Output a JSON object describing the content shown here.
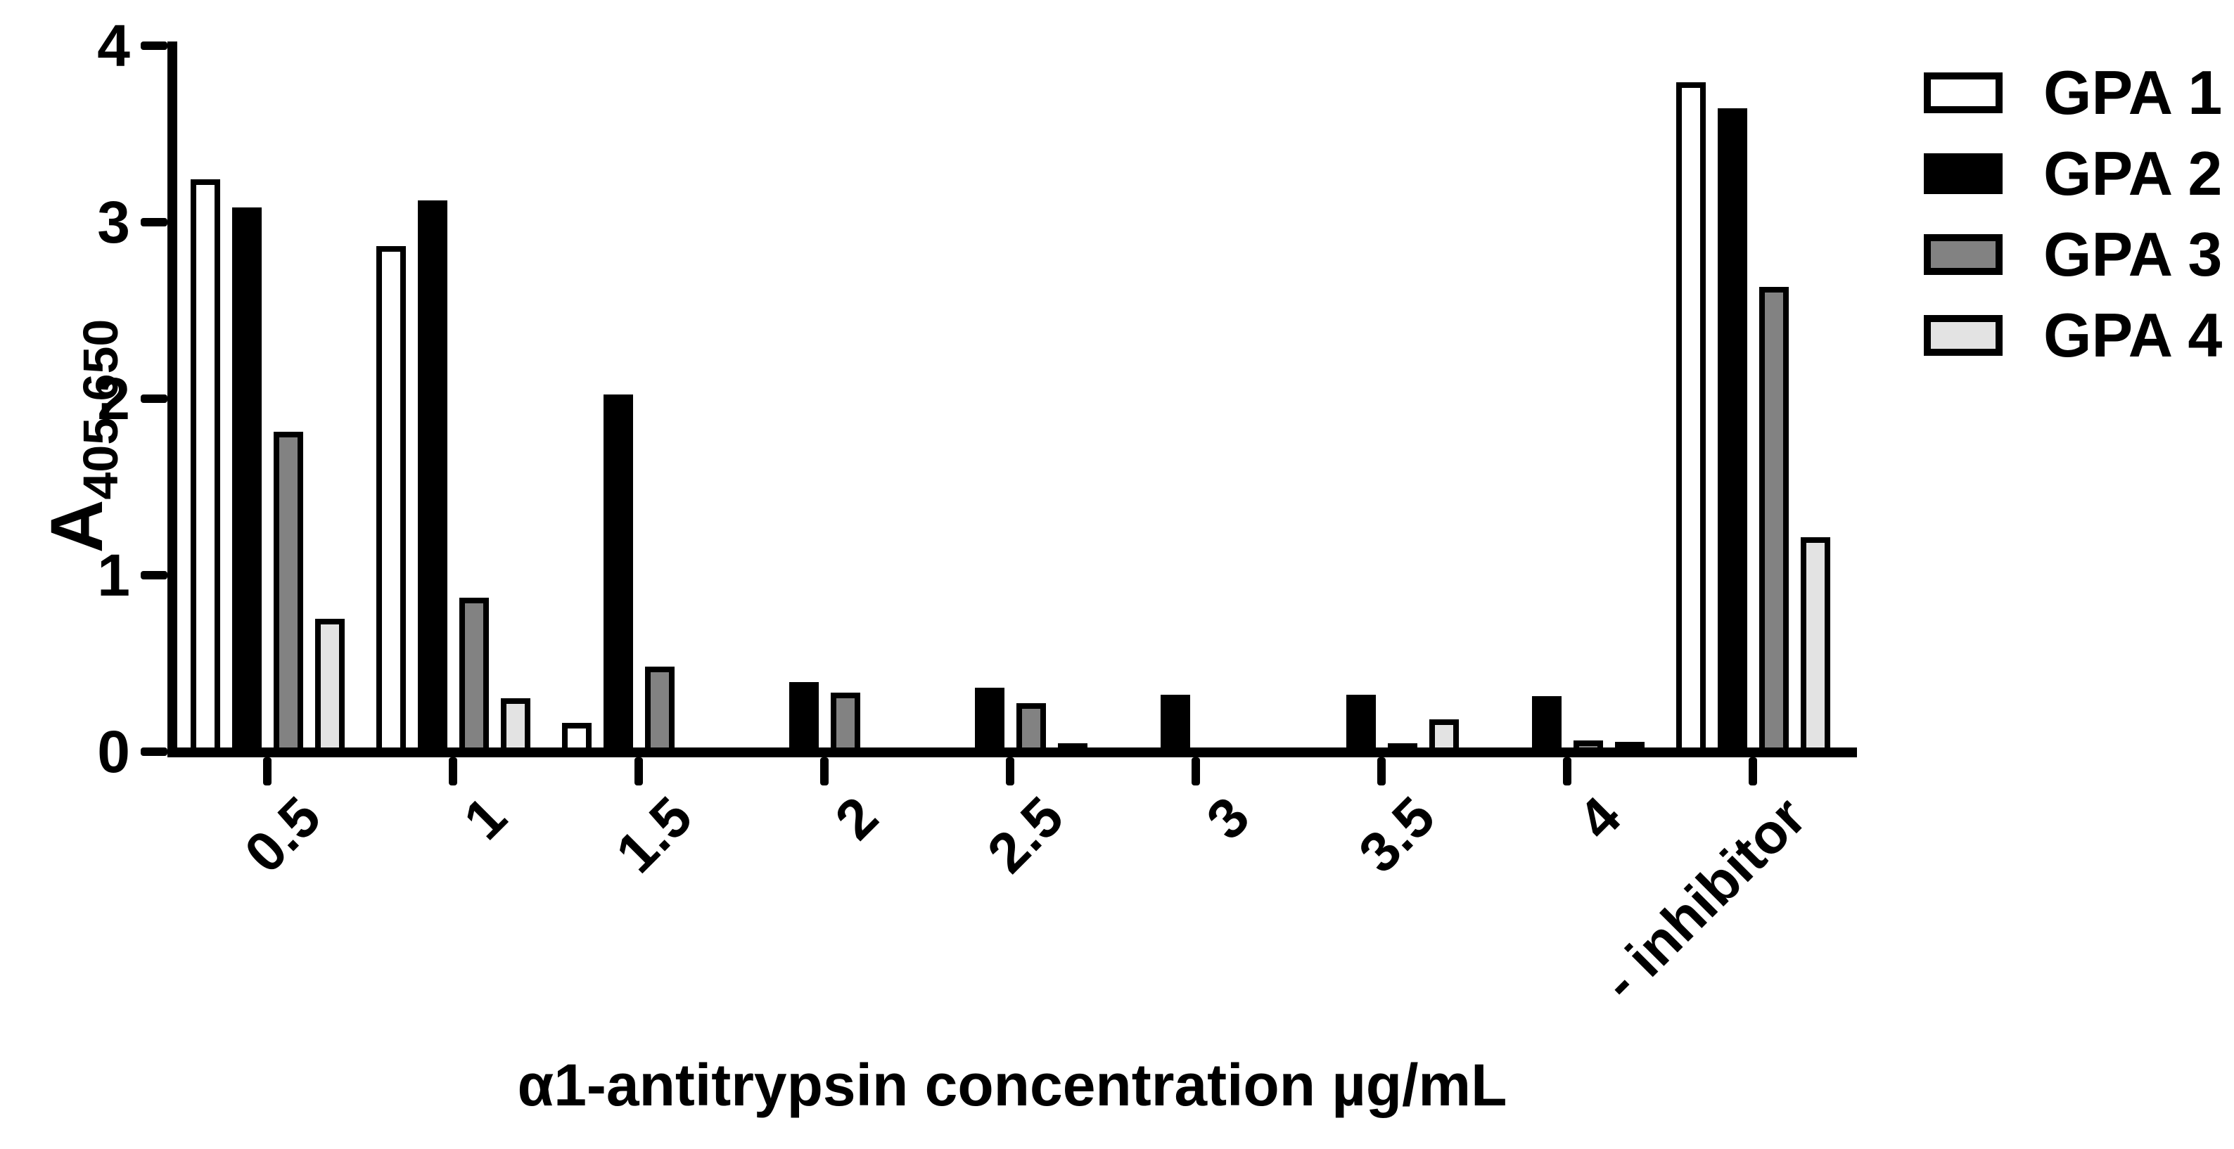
{
  "x_axis_title": "α1-antitrypsin concentration µg/mL",
  "y_axis_label_main": "A",
  "y_axis_label_sub": "405-650",
  "chart_data": {
    "type": "bar",
    "title": "",
    "xlabel": "α1-antitrypsin concentration µg/mL",
    "ylabel": "A405-650",
    "ylim": [
      0,
      4
    ],
    "yticks": [
      0,
      1,
      2,
      3,
      4
    ],
    "grid": false,
    "legend_position": "top-right",
    "bar_outline_color": "#000000",
    "categories": [
      "0.5",
      "1",
      "1.5",
      "2",
      "2.5",
      "3",
      "3.5",
      "4",
      "- inhibitor"
    ],
    "series": [
      {
        "name": "GPA 1",
        "color": "#ffffff",
        "values": [
          3.22,
          2.84,
          0.14,
          0,
          0,
          0,
          0,
          0,
          3.77
        ]
      },
      {
        "name": "GPA 2",
        "color": "#000000",
        "values": [
          3.06,
          3.1,
          2.0,
          0.37,
          0.34,
          0.3,
          0.3,
          0.29,
          3.62
        ]
      },
      {
        "name": "GPA 3",
        "color": "#828282",
        "values": [
          1.79,
          0.85,
          0.46,
          0.31,
          0.25,
          0,
          0.02,
          0.04,
          2.61
        ]
      },
      {
        "name": "GPA 4",
        "color": "#e3e3e3",
        "values": [
          0.73,
          0.28,
          0,
          0,
          0.02,
          0,
          0.16,
          0.03,
          1.19
        ]
      }
    ]
  }
}
